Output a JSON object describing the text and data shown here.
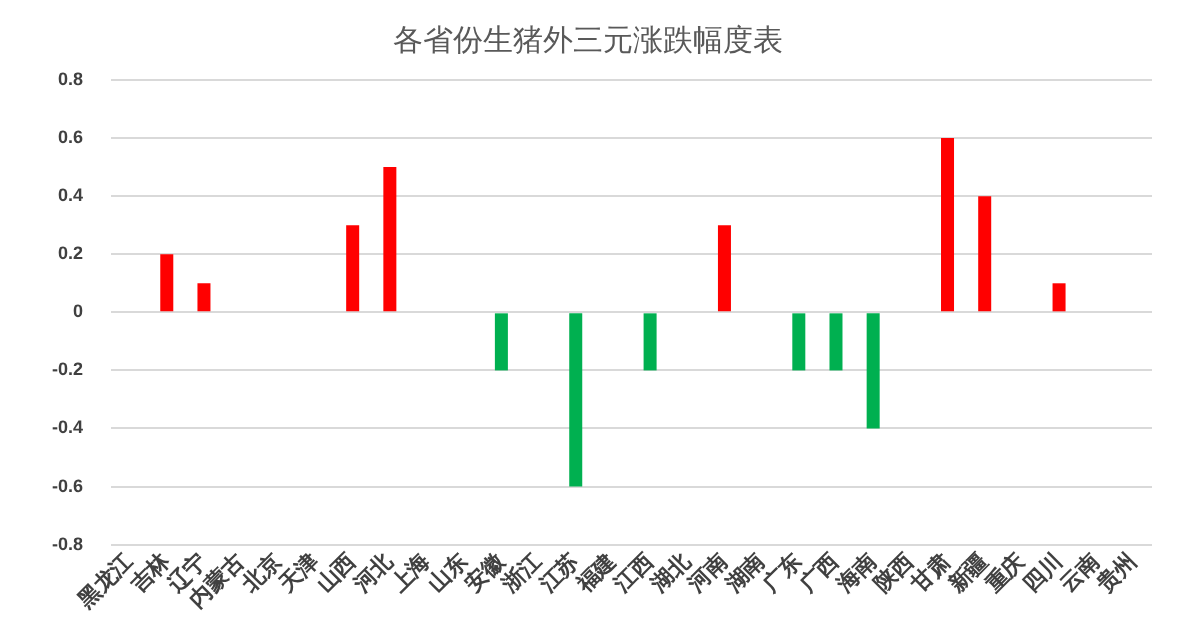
{
  "chart_data": {
    "type": "bar",
    "title": "各省份生猪外三元涨跌幅度表",
    "categories": [
      "黑龙江",
      "吉林",
      "辽宁",
      "内蒙古",
      "北京",
      "天津",
      "山西",
      "河北",
      "上海",
      "山东",
      "安徽",
      "浙江",
      "江苏",
      "福建",
      "江西",
      "湖北",
      "河南",
      "湖南",
      "广东",
      "广西",
      "海南",
      "陕西",
      "甘肃",
      "新疆",
      "重庆",
      "四川",
      "云南",
      "贵州"
    ],
    "values": [
      0,
      0.2,
      0.1,
      0,
      0,
      0,
      0.3,
      0.5,
      0,
      0,
      -0.2,
      0,
      -0.6,
      0,
      -0.2,
      0,
      0.3,
      0,
      -0.2,
      -0.2,
      -0.4,
      0,
      0.6,
      0.4,
      0,
      0.1,
      0,
      0
    ],
    "colors": [
      "#ff0000",
      "#ff0000",
      "#ff0000",
      "#ff0000",
      "#ff0000",
      "#ff0000",
      "#ff0000",
      "#ff0000",
      "#ff0000",
      "#ff0000",
      "#00b050",
      "#ff0000",
      "#00b050",
      "#ff0000",
      "#00b050",
      "#ff0000",
      "#ff0000",
      "#ff0000",
      "#00b050",
      "#00b050",
      "#00b050",
      "#ff0000",
      "#ff0000",
      "#ff0000",
      "#ff0000",
      "#ff0000",
      "#ff0000",
      "#ff0000"
    ],
    "ylim": [
      -0.8,
      0.8
    ],
    "yticks": [
      -0.8,
      -0.6,
      -0.4,
      -0.2,
      0,
      0.2,
      0.4,
      0.6,
      0.8
    ],
    "grid": "y",
    "legend": false
  }
}
